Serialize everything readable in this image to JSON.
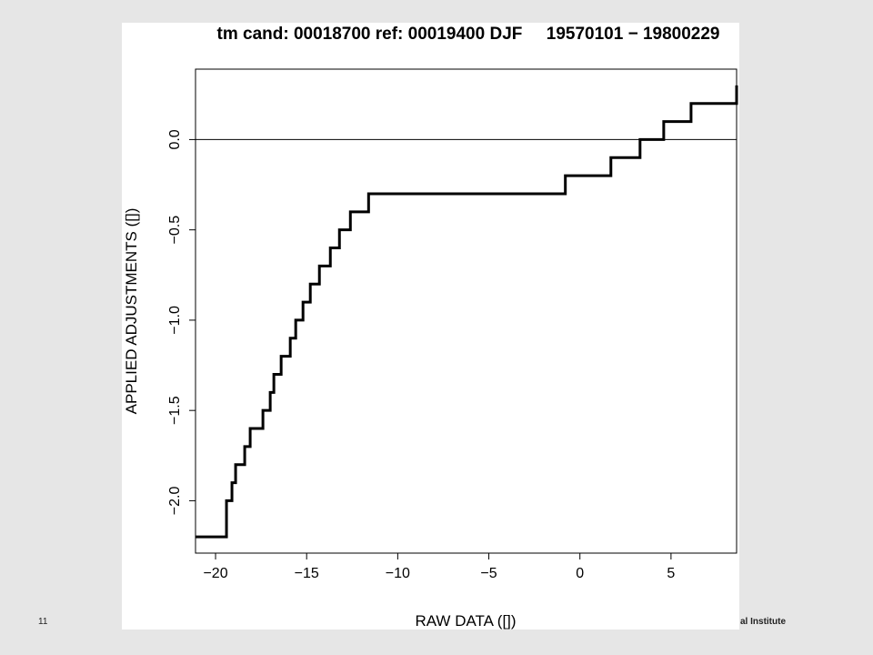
{
  "slide": {
    "number": "11",
    "footer_text": "al Institute"
  },
  "chart_data": {
    "type": "line",
    "line_style": "step",
    "title": "tm cand: 00018700 ref: 00019400 DJF     19570101 − 19800229",
    "xlabel": "RAW DATA ([])",
    "ylabel": "APPLIED ADJUSTMENTS ([])",
    "xlim": [
      -21.1,
      8.6
    ],
    "ylim": [
      -2.29,
      0.39
    ],
    "x_ticks": [
      -20,
      -15,
      -10,
      -5,
      0,
      5
    ],
    "x_tick_labels": [
      "−20",
      "−15",
      "−10",
      "−5",
      "0",
      "5"
    ],
    "y_ticks": [
      0.0,
      -0.5,
      -1.0,
      -1.5,
      -2.0
    ],
    "y_tick_labels": [
      "0.0",
      "−0.5",
      "−1.0",
      "−1.5",
      "−2.0"
    ],
    "reference_line_y": 0.0,
    "grid": false,
    "series": [
      {
        "color": "#000000",
        "x": [
          -21.1,
          -19.4,
          -19.1,
          -18.9,
          -18.4,
          -18.1,
          -17.4,
          -17.0,
          -16.8,
          -16.4,
          -15.9,
          -15.6,
          -15.2,
          -14.8,
          -14.3,
          -13.7,
          -13.2,
          -12.6,
          -11.6,
          -0.8,
          1.7,
          3.3,
          4.6,
          6.1,
          8.6
        ],
        "y": [
          -2.2,
          -2.0,
          -1.9,
          -1.8,
          -1.7,
          -1.6,
          -1.5,
          -1.4,
          -1.3,
          -1.2,
          -1.1,
          -1.0,
          -0.9,
          -0.8,
          -0.7,
          -0.6,
          -0.5,
          -0.4,
          -0.3,
          -0.2,
          -0.1,
          0.0,
          0.1,
          0.2,
          0.3
        ]
      }
    ]
  }
}
